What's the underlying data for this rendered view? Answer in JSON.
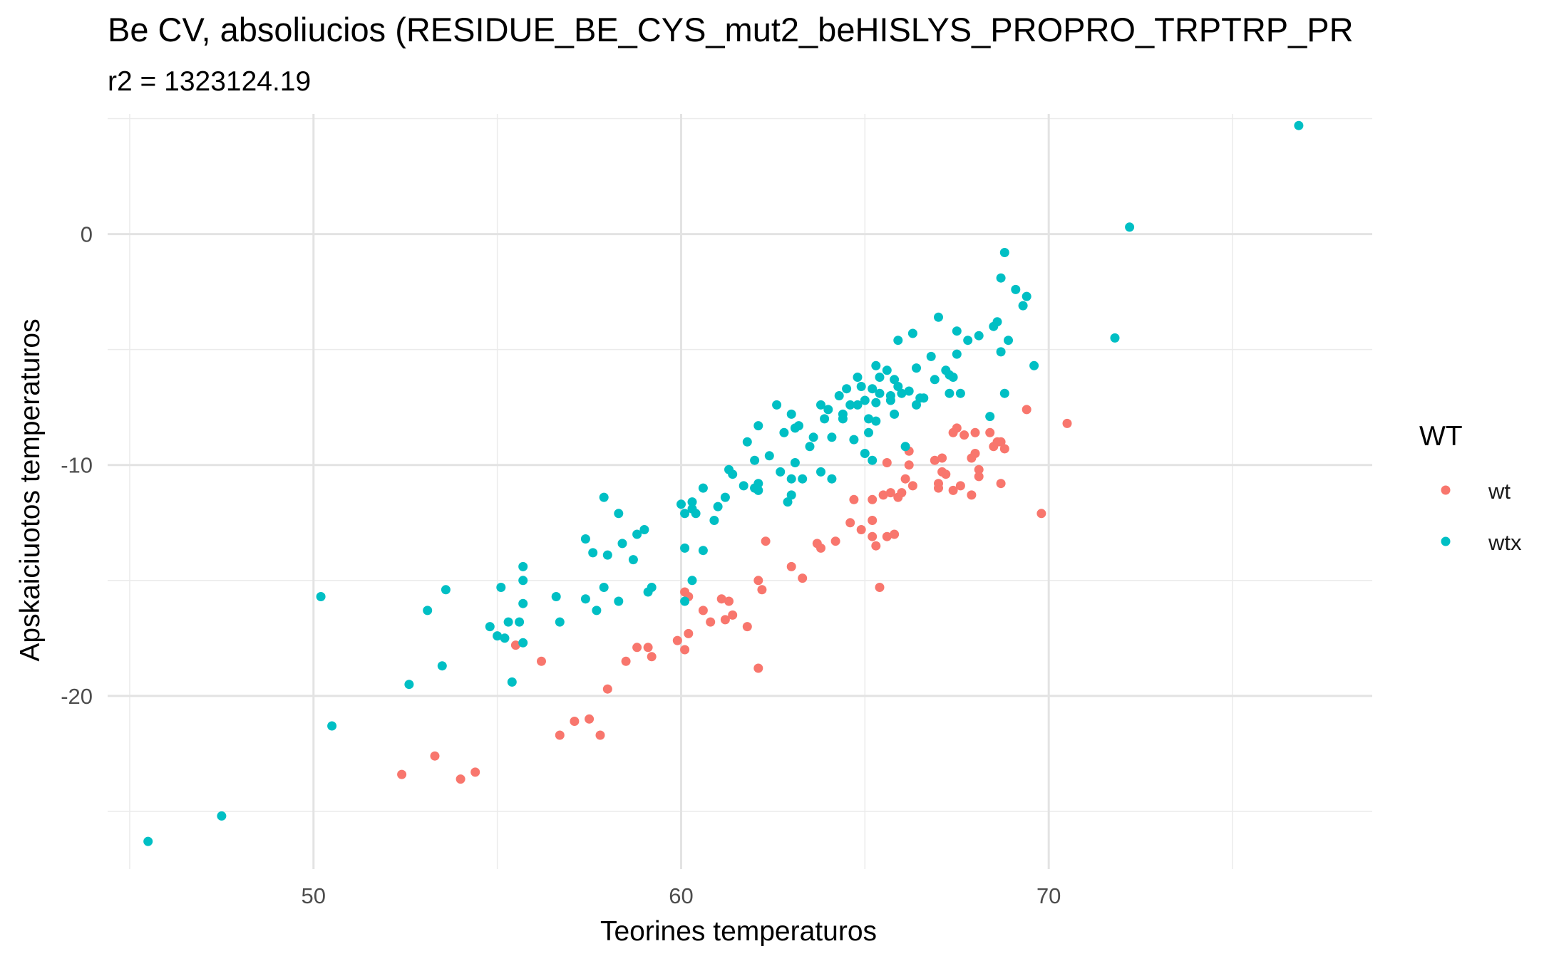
{
  "chart_data": {
    "type": "scatter",
    "title": "Be CV, absoliucios (RESIDUE_BE_CYS_mut2_beHISLYS_PROPRO_TRPTRP_PR",
    "subtitle": "r2 = 1323124.19",
    "xlabel": "Teorines temperaturos",
    "ylabel": "Apskaiciuotos temperaturos",
    "xlim": [
      44.4,
      78.8
    ],
    "ylim": [
      -27.5,
      5.2
    ],
    "x_ticks": [
      50,
      60,
      70
    ],
    "y_ticks": [
      0,
      -10,
      -20
    ],
    "x_tick_labels": [
      "50",
      "60",
      "70"
    ],
    "y_tick_labels": [
      "0",
      "-10",
      "-20"
    ],
    "x_minor_grid": [
      45,
      55,
      65,
      75
    ],
    "y_minor_grid": [
      5,
      -5,
      -15,
      -25
    ],
    "grid": true,
    "legend": {
      "title": "WT",
      "position": "right",
      "entries": [
        {
          "label": "wt",
          "color": "#F8766D"
        },
        {
          "label": "wtx",
          "color": "#00BFC4"
        }
      ]
    },
    "series": [
      {
        "name": "wt",
        "color": "#F8766D",
        "points": [
          [
            52.4,
            -23.4
          ],
          [
            53.3,
            -22.6
          ],
          [
            54.0,
            -23.6
          ],
          [
            54.4,
            -23.3
          ],
          [
            55.5,
            -17.8
          ],
          [
            56.2,
            -18.5
          ],
          [
            56.7,
            -21.7
          ],
          [
            57.1,
            -21.1
          ],
          [
            57.5,
            -21.0
          ],
          [
            57.8,
            -21.7
          ],
          [
            58.0,
            -19.7
          ],
          [
            58.5,
            -18.5
          ],
          [
            58.8,
            -17.9
          ],
          [
            59.1,
            -17.9
          ],
          [
            59.2,
            -18.3
          ],
          [
            59.9,
            -17.6
          ],
          [
            60.1,
            -15.5
          ],
          [
            60.1,
            -18.0
          ],
          [
            60.2,
            -15.7
          ],
          [
            60.2,
            -17.3
          ],
          [
            60.6,
            -16.3
          ],
          [
            60.8,
            -16.8
          ],
          [
            61.1,
            -15.8
          ],
          [
            61.2,
            -16.7
          ],
          [
            61.3,
            -15.9
          ],
          [
            61.4,
            -16.5
          ],
          [
            61.8,
            -17.0
          ],
          [
            62.1,
            -15.0
          ],
          [
            62.1,
            -18.8
          ],
          [
            62.2,
            -15.4
          ],
          [
            62.3,
            -13.3
          ],
          [
            63.0,
            -14.4
          ],
          [
            63.3,
            -14.9
          ],
          [
            63.7,
            -13.4
          ],
          [
            63.8,
            -13.6
          ],
          [
            64.2,
            -13.3
          ],
          [
            64.6,
            -12.5
          ],
          [
            64.7,
            -11.5
          ],
          [
            64.9,
            -12.8
          ],
          [
            65.2,
            -12.4
          ],
          [
            65.2,
            -11.5
          ],
          [
            65.2,
            -13.1
          ],
          [
            65.3,
            -13.5
          ],
          [
            65.4,
            -15.3
          ],
          [
            65.5,
            -11.3
          ],
          [
            65.6,
            -9.9
          ],
          [
            65.6,
            -13.1
          ],
          [
            65.7,
            -11.2
          ],
          [
            65.8,
            -13.0
          ],
          [
            65.9,
            -11.4
          ],
          [
            66.0,
            -11.2
          ],
          [
            66.1,
            -10.6
          ],
          [
            66.2,
            -9.4
          ],
          [
            66.2,
            -10.0
          ],
          [
            66.3,
            -10.9
          ],
          [
            66.9,
            -9.8
          ],
          [
            67.0,
            -10.8
          ],
          [
            67.0,
            -11.0
          ],
          [
            67.1,
            -9.7
          ],
          [
            67.1,
            -10.3
          ],
          [
            67.2,
            -10.4
          ],
          [
            67.4,
            -8.6
          ],
          [
            67.4,
            -11.1
          ],
          [
            67.5,
            -8.4
          ],
          [
            67.6,
            -10.9
          ],
          [
            67.7,
            -8.7
          ],
          [
            67.9,
            -9.7
          ],
          [
            67.9,
            -11.3
          ],
          [
            68.0,
            -8.6
          ],
          [
            68.0,
            -9.5
          ],
          [
            68.1,
            -10.2
          ],
          [
            68.1,
            -10.5
          ],
          [
            68.4,
            -8.6
          ],
          [
            68.5,
            -9.2
          ],
          [
            68.6,
            -9.0
          ],
          [
            68.7,
            -9.0
          ],
          [
            68.7,
            -10.8
          ],
          [
            68.8,
            -9.3
          ],
          [
            69.4,
            -7.6
          ],
          [
            69.8,
            -12.1
          ],
          [
            70.5,
            -8.2
          ]
        ]
      },
      {
        "name": "wtx",
        "color": "#00BFC4",
        "points": [
          [
            45.5,
            -26.3
          ],
          [
            47.5,
            -25.2
          ],
          [
            50.2,
            -15.7
          ],
          [
            50.5,
            -21.3
          ],
          [
            52.6,
            -19.5
          ],
          [
            53.1,
            -16.3
          ],
          [
            53.5,
            -18.7
          ],
          [
            53.6,
            -15.4
          ],
          [
            54.8,
            -17.0
          ],
          [
            55.0,
            -17.4
          ],
          [
            55.1,
            -15.3
          ],
          [
            55.2,
            -17.5
          ],
          [
            55.3,
            -16.8
          ],
          [
            55.4,
            -19.4
          ],
          [
            55.6,
            -16.8
          ],
          [
            55.7,
            -17.7
          ],
          [
            55.7,
            -16.0
          ],
          [
            55.7,
            -15.0
          ],
          [
            55.7,
            -14.4
          ],
          [
            56.6,
            -15.7
          ],
          [
            56.7,
            -16.8
          ],
          [
            57.4,
            -15.8
          ],
          [
            57.4,
            -13.2
          ],
          [
            57.6,
            -13.8
          ],
          [
            57.7,
            -16.3
          ],
          [
            57.9,
            -11.4
          ],
          [
            57.9,
            -15.3
          ],
          [
            58.0,
            -13.9
          ],
          [
            58.3,
            -12.1
          ],
          [
            58.3,
            -15.9
          ],
          [
            58.4,
            -13.4
          ],
          [
            58.7,
            -14.1
          ],
          [
            58.8,
            -13.0
          ],
          [
            59.0,
            -12.8
          ],
          [
            59.1,
            -15.5
          ],
          [
            59.2,
            -15.3
          ],
          [
            60.0,
            -11.7
          ],
          [
            60.1,
            -12.1
          ],
          [
            60.1,
            -13.6
          ],
          [
            60.1,
            -15.9
          ],
          [
            60.3,
            -11.9
          ],
          [
            60.3,
            -11.6
          ],
          [
            60.3,
            -15.0
          ],
          [
            60.4,
            -12.1
          ],
          [
            60.6,
            -11.0
          ],
          [
            60.6,
            -13.7
          ],
          [
            60.9,
            -12.4
          ],
          [
            61.0,
            -11.8
          ],
          [
            61.2,
            -11.4
          ],
          [
            61.3,
            -10.2
          ],
          [
            61.4,
            -10.4
          ],
          [
            61.7,
            -10.9
          ],
          [
            61.8,
            -9.0
          ],
          [
            62.0,
            -11.0
          ],
          [
            62.0,
            -9.8
          ],
          [
            62.1,
            -8.3
          ],
          [
            62.1,
            -10.8
          ],
          [
            62.1,
            -11.1
          ],
          [
            62.4,
            -9.6
          ],
          [
            62.6,
            -7.4
          ],
          [
            62.7,
            -10.3
          ],
          [
            62.8,
            -8.6
          ],
          [
            62.9,
            -11.6
          ],
          [
            63.0,
            -11.3
          ],
          [
            63.0,
            -10.6
          ],
          [
            63.0,
            -7.8
          ],
          [
            63.1,
            -8.4
          ],
          [
            63.2,
            -8.3
          ],
          [
            63.1,
            -9.9
          ],
          [
            63.3,
            -10.6
          ],
          [
            63.5,
            -9.2
          ],
          [
            63.6,
            -8.8
          ],
          [
            63.8,
            -7.4
          ],
          [
            63.8,
            -10.3
          ],
          [
            63.9,
            -8.0
          ],
          [
            64.0,
            -7.6
          ],
          [
            64.1,
            -8.8
          ],
          [
            64.1,
            -10.6
          ],
          [
            64.3,
            -7.0
          ],
          [
            64.4,
            -7.8
          ],
          [
            64.4,
            -8.0
          ],
          [
            64.5,
            -6.7
          ],
          [
            64.6,
            -7.4
          ],
          [
            64.7,
            -8.9
          ],
          [
            64.8,
            -6.2
          ],
          [
            64.8,
            -7.4
          ],
          [
            64.9,
            -6.6
          ],
          [
            65.0,
            -9.5
          ],
          [
            65.0,
            -7.2
          ],
          [
            65.1,
            -8.6
          ],
          [
            65.1,
            -8.0
          ],
          [
            65.2,
            -6.7
          ],
          [
            65.2,
            -9.8
          ],
          [
            65.3,
            -5.7
          ],
          [
            65.3,
            -7.3
          ],
          [
            65.3,
            -8.1
          ],
          [
            65.4,
            -6.2
          ],
          [
            65.4,
            -6.9
          ],
          [
            65.6,
            -5.9
          ],
          [
            65.7,
            -7.2
          ],
          [
            65.7,
            -7.0
          ],
          [
            65.8,
            -6.3
          ],
          [
            65.8,
            -7.8
          ],
          [
            65.9,
            -4.6
          ],
          [
            65.9,
            -6.6
          ],
          [
            66.0,
            -6.9
          ],
          [
            66.1,
            -9.2
          ],
          [
            66.2,
            -6.8
          ],
          [
            66.3,
            -4.3
          ],
          [
            66.4,
            -5.8
          ],
          [
            66.4,
            -7.4
          ],
          [
            66.5,
            -7.1
          ],
          [
            66.6,
            -7.1
          ],
          [
            66.8,
            -5.3
          ],
          [
            66.9,
            -6.3
          ],
          [
            67.0,
            -3.6
          ],
          [
            67.2,
            -5.9
          ],
          [
            67.3,
            -6.1
          ],
          [
            67.3,
            -6.9
          ],
          [
            67.4,
            -6.2
          ],
          [
            67.5,
            -4.2
          ],
          [
            67.5,
            -5.2
          ],
          [
            67.6,
            -6.9
          ],
          [
            67.8,
            -4.6
          ],
          [
            68.1,
            -4.4
          ],
          [
            68.4,
            -7.9
          ],
          [
            68.5,
            -4.0
          ],
          [
            68.6,
            -3.8
          ],
          [
            68.7,
            -5.1
          ],
          [
            68.7,
            -1.9
          ],
          [
            68.8,
            -0.8
          ],
          [
            68.8,
            -6.9
          ],
          [
            68.9,
            -4.6
          ],
          [
            69.1,
            -2.4
          ],
          [
            69.3,
            -3.1
          ],
          [
            69.4,
            -2.7
          ],
          [
            69.6,
            -5.7
          ],
          [
            71.8,
            -4.5
          ],
          [
            72.2,
            0.3
          ],
          [
            76.8,
            4.7
          ]
        ]
      }
    ]
  }
}
